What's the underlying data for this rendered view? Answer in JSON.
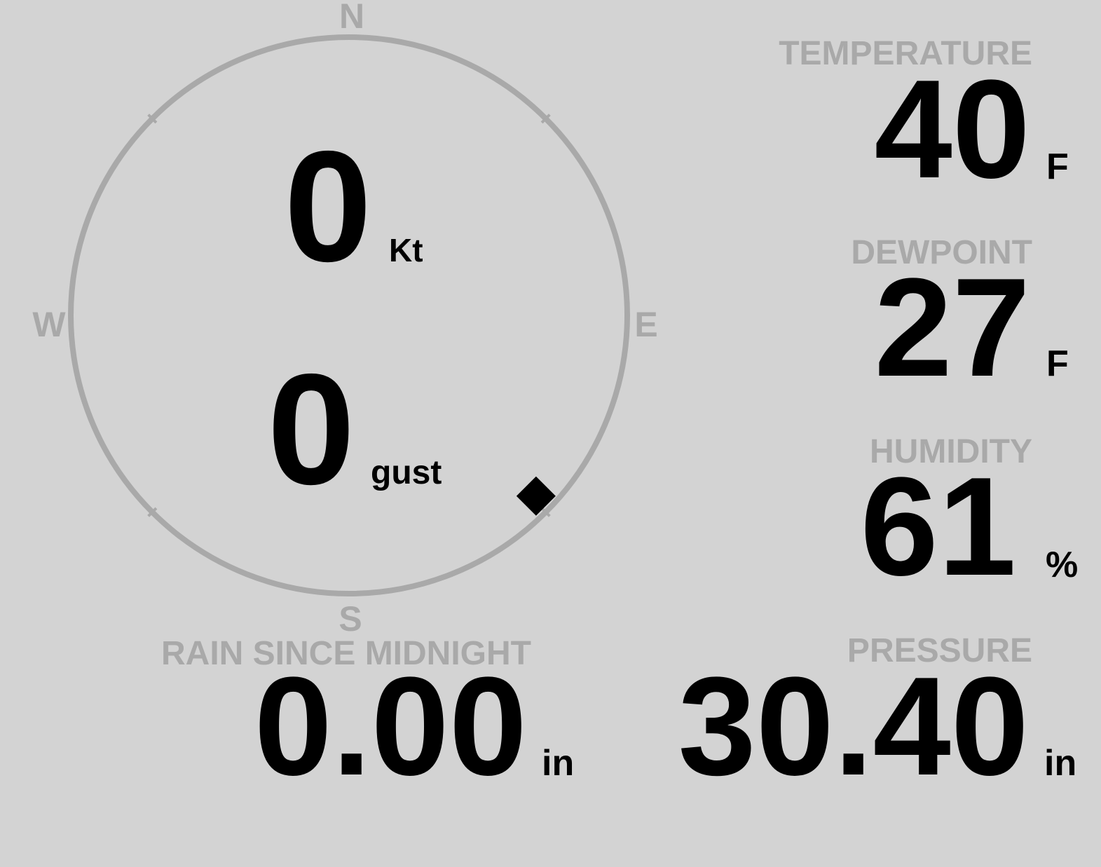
{
  "compass": {
    "north": "N",
    "east": "E",
    "south": "S",
    "west": "W",
    "wind_direction_deg": 134
  },
  "wind": {
    "speed": "0",
    "speed_unit": "Kt",
    "gust": "0",
    "gust_unit": "gust"
  },
  "temperature": {
    "label": "TEMPERATURE",
    "value": "40",
    "unit": "F"
  },
  "dewpoint": {
    "label": "DEWPOINT",
    "value": "27",
    "unit": "F"
  },
  "humidity": {
    "label": "HUMIDITY",
    "value": "61",
    "unit": "%"
  },
  "rain": {
    "label": "RAIN SINCE MIDNIGHT",
    "value": "0.00",
    "unit": "in"
  },
  "pressure": {
    "label": "PRESSURE",
    "value": "30.40",
    "unit": "in"
  }
}
